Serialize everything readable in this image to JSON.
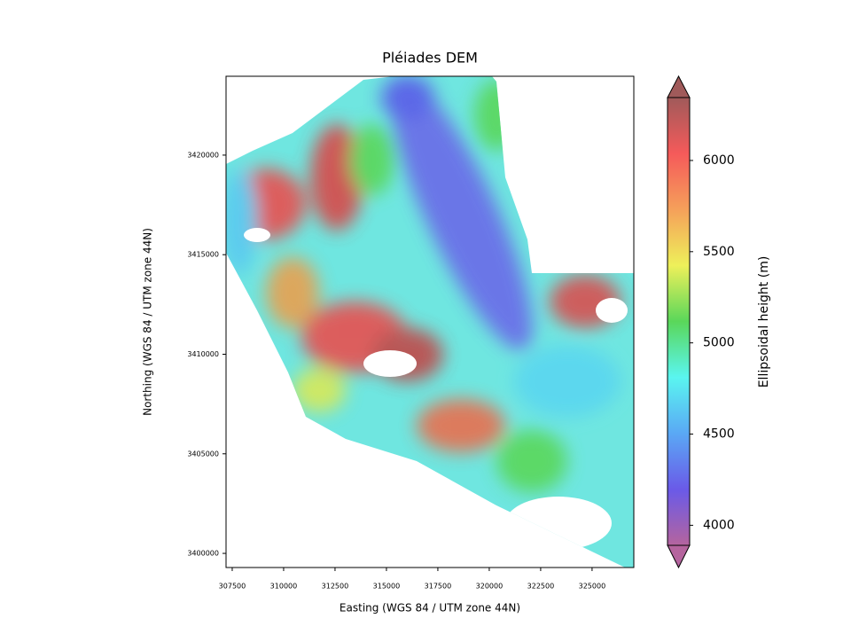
{
  "chart_data": {
    "type": "image",
    "title": "Pléiades DEM",
    "x_label": "Easting (WGS 84 / UTM zone 44N)",
    "y_label": "Northing (WGS 84 / UTM zone 44N)",
    "xlim": [
      307200,
      327030
    ],
    "ylim": [
      3399290,
      3423960
    ],
    "xticks": [
      307500,
      310000,
      312500,
      315000,
      317500,
      320000,
      322500,
      325000
    ],
    "yticks": [
      3400000,
      3405000,
      3410000,
      3415000,
      3420000
    ],
    "colorbar": {
      "label": "Ellipsoidal height (m)",
      "lim": [
        3890,
        6345
      ],
      "ticks": [
        4000,
        4500,
        5000,
        5500,
        6000
      ],
      "extend": "both",
      "colors": [
        "#b5649e",
        "#6a5ae8",
        "#5aa8f5",
        "#5af5f0",
        "#5ad75a",
        "#eef05a",
        "#f5a05a",
        "#f55a5a",
        "#a05a5a"
      ]
    }
  }
}
